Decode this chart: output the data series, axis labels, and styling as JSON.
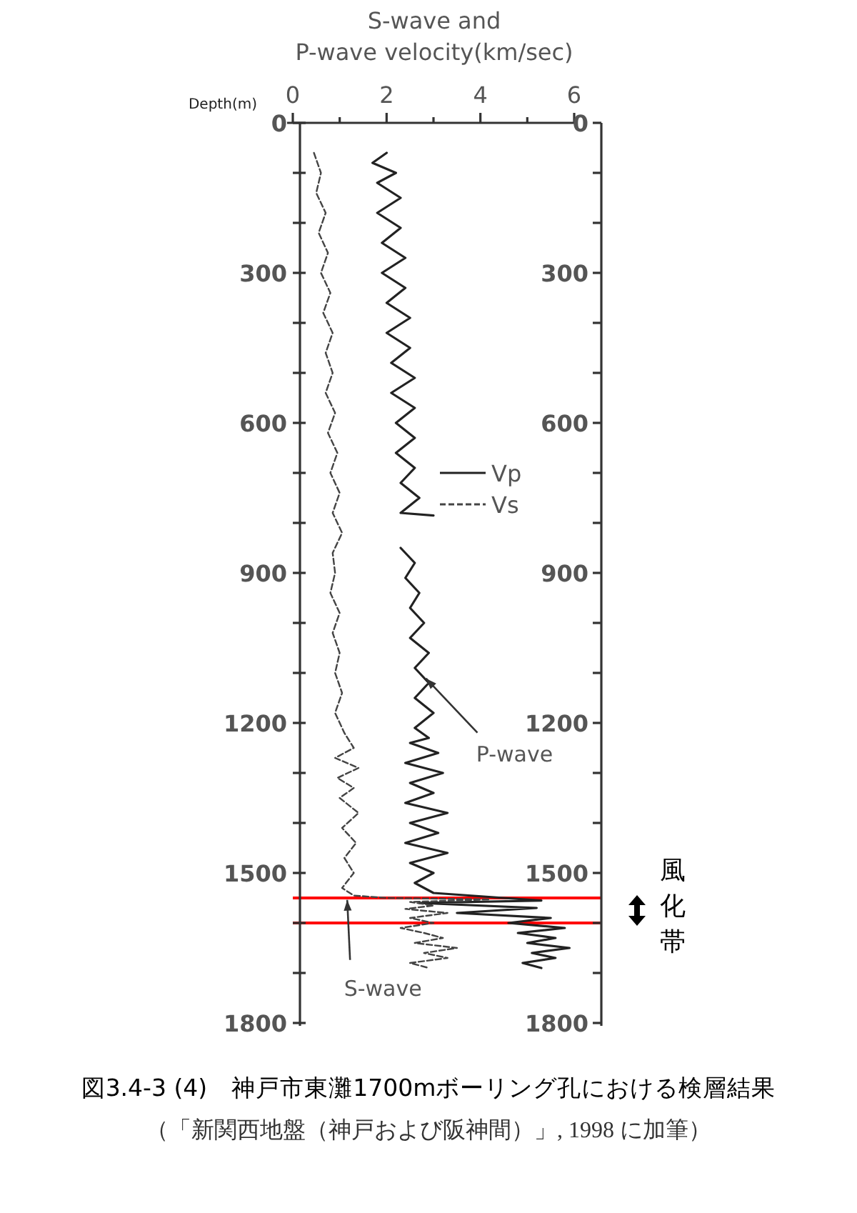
{
  "chart_data": {
    "type": "line",
    "title": "図3.4-3 (4)　神戸市東灘1700mボーリング孔における検層結果",
    "xlabel": "S-wave and P-wave velocity(km/sec)",
    "ylabel": "Depth(m)",
    "xlim": [
      0,
      6
    ],
    "xticks": [
      0,
      {
        "value": 1,
        "label": null
      },
      2,
      {
        "value": 3,
        "label": null
      },
      4,
      {
        "value": 5,
        "label": null
      },
      6
    ],
    "ylim": [
      1800,
      0
    ],
    "yticks": [
      0,
      {
        "value": 100,
        "label": null
      },
      {
        "value": 200,
        "label": null
      },
      300,
      {
        "value": 400,
        "label": null
      },
      {
        "value": 500,
        "label": null
      },
      600,
      {
        "value": 700,
        "label": null
      },
      {
        "value": 800,
        "label": null
      },
      900,
      {
        "value": 1000,
        "label": null
      },
      {
        "value": 1100,
        "label": null
      },
      1200,
      {
        "value": 1300,
        "label": null
      },
      {
        "value": 1400,
        "label": null
      },
      1500,
      {
        "value": 1600,
        "label": null
      },
      {
        "value": 1700,
        "label": null
      },
      1800
    ],
    "y2lim": [
      1800,
      0
    ],
    "y2ticks": [
      0,
      {
        "value": 100,
        "label": null
      },
      {
        "value": 200,
        "label": null
      },
      300,
      {
        "value": 400,
        "label": null
      },
      {
        "value": 500,
        "label": null
      },
      600,
      {
        "value": 700,
        "label": null
      },
      {
        "value": 800,
        "label": null
      },
      900,
      {
        "value": 1000,
        "label": null
      },
      {
        "value": 1100,
        "label": null
      },
      1200,
      {
        "value": 1300,
        "label": null
      },
      {
        "value": 1400,
        "label": null
      },
      1500,
      {
        "value": 1600,
        "label": null
      },
      {
        "value": 1700,
        "label": null
      },
      1800
    ],
    "legend": "right",
    "series": [
      {
        "name": "Vp",
        "color": "#222222",
        "line_style": "solid",
        "x": [
          2.0,
          1.7,
          2.2,
          1.8,
          2.3,
          1.8,
          2.3,
          1.9,
          2.4,
          1.9,
          2.4,
          2.0,
          2.5,
          2.0,
          2.5,
          2.1,
          2.6,
          2.1,
          2.6,
          2.2,
          2.6,
          2.2,
          2.6,
          2.3,
          2.7,
          2.3,
          3.0,
          null,
          2.3,
          2.6,
          2.4,
          2.7,
          2.5,
          2.8,
          2.5,
          2.9,
          2.6,
          2.9,
          2.6,
          3.0,
          2.6,
          2.9,
          2.5,
          3.1,
          2.4,
          3.2,
          2.5,
          3.0,
          2.4,
          3.3,
          2.5,
          3.1,
          2.4,
          3.3,
          2.5,
          3.0,
          2.6,
          3.0,
          4.5,
          5.3,
          2.7,
          5.2,
          3.5,
          5.5,
          4.6,
          5.8,
          4.8,
          5.6,
          5.0,
          5.9,
          5.1,
          5.6,
          4.9,
          5.3
        ],
        "values": [
          60,
          80,
          100,
          120,
          150,
          180,
          210,
          240,
          270,
          300,
          330,
          360,
          390,
          420,
          450,
          480,
          510,
          540,
          570,
          600,
          630,
          660,
          690,
          720,
          750,
          780,
          785,
          null,
          850,
          880,
          910,
          940,
          970,
          1000,
          1030,
          1060,
          1090,
          1120,
          1150,
          1180,
          1210,
          1230,
          1240,
          1260,
          1280,
          1300,
          1320,
          1340,
          1360,
          1380,
          1400,
          1420,
          1440,
          1460,
          1480,
          1500,
          1520,
          1540,
          1550,
          1555,
          1560,
          1570,
          1580,
          1590,
          1600,
          1610,
          1620,
          1630,
          1640,
          1650,
          1660,
          1670,
          1680,
          1690
        ]
      },
      {
        "name": "Vs",
        "color": "#444444",
        "line_style": "dashed",
        "x": [
          0.45,
          0.6,
          0.5,
          0.7,
          0.55,
          0.75,
          0.6,
          0.8,
          0.65,
          0.85,
          0.7,
          0.85,
          0.7,
          0.9,
          0.75,
          0.95,
          0.8,
          1.0,
          0.85,
          1.05,
          0.85,
          0.9,
          0.8,
          1.0,
          0.85,
          1.0,
          0.9,
          1.05,
          0.9,
          1.1,
          1.3,
          0.9,
          1.4,
          0.95,
          1.3,
          1.0,
          1.4,
          1.05,
          1.35,
          1.1,
          1.3,
          1.05,
          1.3,
          2.0,
          4.2,
          2.5,
          3.0,
          2.4,
          3.3,
          2.5,
          3.0,
          2.3,
          2.8,
          3.2,
          2.6,
          3.5,
          2.8,
          3.3,
          2.5,
          2.9
        ],
        "values": [
          60,
          100,
          140,
          180,
          220,
          260,
          300,
          340,
          380,
          420,
          460,
          500,
          540,
          580,
          620,
          660,
          700,
          740,
          780,
          820,
          860,
          900,
          940,
          980,
          1020,
          1060,
          1100,
          1140,
          1180,
          1220,
          1250,
          1270,
          1290,
          1310,
          1330,
          1350,
          1380,
          1410,
          1440,
          1470,
          1500,
          1530,
          1545,
          1550,
          1553,
          1558,
          1565,
          1572,
          1580,
          1590,
          1600,
          1610,
          1620,
          1630,
          1640,
          1650,
          1660,
          1670,
          1680,
          1690
        ]
      }
    ],
    "ref_lines": [
      {
        "axis": "y",
        "value": 1550,
        "label": "風化帯",
        "color": "#ff0000"
      },
      {
        "axis": "y",
        "value": 1600,
        "color": "#ff0000"
      }
    ],
    "annotations": [
      {
        "text": "P-wave",
        "x": 2.84,
        "y": 1111
      },
      {
        "text": "S-wave",
        "x": 1.16,
        "y": 1554
      },
      "（「新関西地盤（神戸および阪神間）」, 1998 に加筆）"
    ]
  }
}
